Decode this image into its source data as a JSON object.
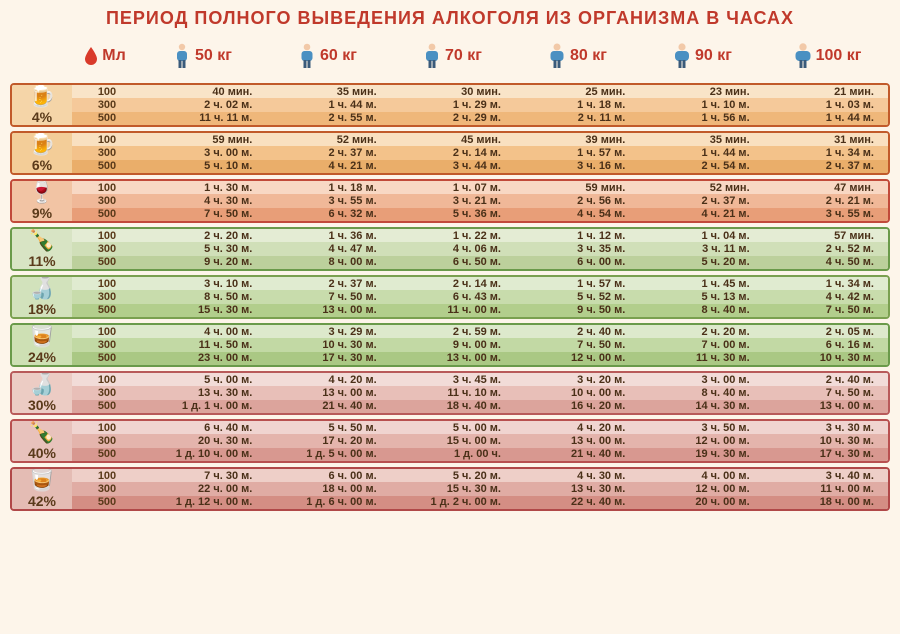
{
  "title": "ПЕРИОД ПОЛНОГО ВЫВЕДЕНИЯ АЛКОГОЛЯ ИЗ ОРГАНИЗМА В ЧАСАХ",
  "ml_label": "Мл",
  "weights": [
    "50 кг",
    "60 кг",
    "70 кг",
    "80 кг",
    "90 кг",
    "100 кг"
  ],
  "groups": [
    {
      "pct": "4%",
      "icon": "🍺",
      "border": "#c15a2a",
      "row_bgs": [
        "#f9e4c8",
        "#f5c99a",
        "#efb77a"
      ],
      "icon_bg": "#f5d5a8",
      "rows": [
        {
          "ml": "100",
          "vals": [
            "40 мин.",
            "35 мин.",
            "30 мин.",
            "25 мин.",
            "23 мин.",
            "21 мин."
          ]
        },
        {
          "ml": "300",
          "vals": [
            "2 ч. 02 м.",
            "1 ч. 44 м.",
            "1 ч. 29 м.",
            "1 ч. 18 м.",
            "1 ч. 10 м.",
            "1 ч. 03 м."
          ]
        },
        {
          "ml": "500",
          "vals": [
            "11 ч. 11 м.",
            "2 ч. 55 м.",
            "2 ч. 29 м.",
            "2 ч. 11 м.",
            "1 ч. 56 м.",
            "1 ч. 44 м."
          ]
        }
      ]
    },
    {
      "pct": "6%",
      "icon": "🍺",
      "border": "#c15a2a",
      "row_bgs": [
        "#f9e0c0",
        "#f3c28a",
        "#eaae6a"
      ],
      "icon_bg": "#f3cd98",
      "rows": [
        {
          "ml": "100",
          "vals": [
            "59 мин.",
            "52 мин.",
            "45 мин.",
            "39 мин.",
            "35 мин.",
            "31 мин."
          ]
        },
        {
          "ml": "300",
          "vals": [
            "3 ч. 00 м.",
            "2 ч. 37 м.",
            "2 ч. 14 м.",
            "1 ч. 57 м.",
            "1 ч. 44 м.",
            "1 ч. 34 м."
          ]
        },
        {
          "ml": "500",
          "vals": [
            "5 ч. 10 м.",
            "4 ч. 21 м.",
            "3 ч. 44 м.",
            "3 ч. 16 м.",
            "2 ч. 54 м.",
            "2 ч. 37 м."
          ]
        }
      ]
    },
    {
      "pct": "9%",
      "icon": "🍷",
      "border": "#c14a3a",
      "row_bgs": [
        "#f8d8c4",
        "#f0b898",
        "#e89e78"
      ],
      "icon_bg": "#f2c4a4",
      "rows": [
        {
          "ml": "100",
          "vals": [
            "1 ч. 30 м.",
            "1 ч. 18 м.",
            "1 ч. 07 м.",
            "59 мин.",
            "52 мин.",
            "47 мин."
          ]
        },
        {
          "ml": "300",
          "vals": [
            "4 ч. 30 м.",
            "3 ч. 55 м.",
            "3 ч. 21 м.",
            "2 ч. 56 м.",
            "2 ч. 37 м.",
            "2 ч. 21 м."
          ]
        },
        {
          "ml": "500",
          "vals": [
            "7 ч. 50 м.",
            "6 ч. 32 м.",
            "5 ч. 36 м.",
            "4 ч. 54 м.",
            "4 ч. 21 м.",
            "3 ч. 55 м."
          ]
        }
      ]
    },
    {
      "pct": "11%",
      "icon": "🍾",
      "border": "#6a9a4a",
      "row_bgs": [
        "#e4ecd4",
        "#d0dfb8",
        "#bcd09c"
      ],
      "icon_bg": "#d8e4c4",
      "rows": [
        {
          "ml": "100",
          "vals": [
            "2 ч. 20 м.",
            "1 ч. 36 м.",
            "1 ч. 22 м.",
            "1 ч. 12 м.",
            "1 ч. 04 м.",
            "57 мин."
          ]
        },
        {
          "ml": "300",
          "vals": [
            "5 ч. 30 м.",
            "4 ч. 47 м.",
            "4 ч. 06 м.",
            "3 ч. 35 м.",
            "3 ч. 11 м.",
            "2 ч. 52 м."
          ]
        },
        {
          "ml": "500",
          "vals": [
            "9 ч. 20 м.",
            "8 ч. 00 м.",
            "6 ч. 50 м.",
            "6 ч. 00 м.",
            "5 ч. 20 м.",
            "4 ч. 50 м."
          ]
        }
      ]
    },
    {
      "pct": "18%",
      "icon": "🍶",
      "border": "#7aa050",
      "row_bgs": [
        "#e0ebd0",
        "#c8dcac",
        "#b2ce8c"
      ],
      "icon_bg": "#d2e2bc",
      "rows": [
        {
          "ml": "100",
          "vals": [
            "3 ч. 10 м.",
            "2 ч. 37 м.",
            "2 ч. 14 м.",
            "1 ч. 57 м.",
            "1 ч. 45 м.",
            "1 ч. 34 м."
          ]
        },
        {
          "ml": "300",
          "vals": [
            "8 ч. 50 м.",
            "7 ч. 50 м.",
            "6 ч. 43 м.",
            "5 ч. 52 м.",
            "5 ч. 13 м.",
            "4 ч. 42 м."
          ]
        },
        {
          "ml": "500",
          "vals": [
            "15 ч. 30 м.",
            "13 ч. 00 м.",
            "11 ч. 00 м.",
            "9 ч. 50 м.",
            "8 ч. 40 м.",
            "7 ч. 50 м."
          ]
        }
      ]
    },
    {
      "pct": "24%",
      "icon": "🥃",
      "border": "#6a9a4a",
      "row_bgs": [
        "#dde9cc",
        "#c2d9a4",
        "#aac884"
      ],
      "icon_bg": "#cee0b4",
      "rows": [
        {
          "ml": "100",
          "vals": [
            "4 ч. 00 м.",
            "3 ч. 29 м.",
            "2 ч. 59 м.",
            "2 ч. 40 м.",
            "2 ч. 20 м.",
            "2 ч. 05 м."
          ]
        },
        {
          "ml": "300",
          "vals": [
            "11 ч. 50 м.",
            "10 ч. 30 м.",
            "9 ч. 00 м.",
            "7 ч. 50 м.",
            "7 ч. 00 м.",
            "6 ч. 16 м."
          ]
        },
        {
          "ml": "500",
          "vals": [
            "23 ч. 00 м.",
            "17 ч. 30 м.",
            "13 ч. 00 м.",
            "12 ч. 00 м.",
            "11 ч. 30 м.",
            "10 ч. 30 м."
          ]
        }
      ]
    },
    {
      "pct": "30%",
      "icon": "🍶",
      "border": "#b85a5a",
      "row_bgs": [
        "#f2dcd8",
        "#e8bfb8",
        "#dca49c"
      ],
      "icon_bg": "#ecccc4",
      "rows": [
        {
          "ml": "100",
          "vals": [
            "5 ч. 00 м.",
            "4 ч. 20 м.",
            "3 ч. 45 м.",
            "3 ч. 20 м.",
            "3 ч. 00 м.",
            "2 ч. 40 м."
          ]
        },
        {
          "ml": "300",
          "vals": [
            "13 ч. 30 м.",
            "13 ч. 00 м.",
            "11 ч. 10 м.",
            "10 ч. 00 м.",
            "8 ч. 40 м.",
            "7 ч. 50 м."
          ]
        },
        {
          "ml": "500",
          "vals": [
            "1 д. 1 ч. 00 м.",
            "21 ч. 40 м.",
            "18 ч. 40 м.",
            "16 ч. 20 м.",
            "14 ч. 30 м.",
            "13 ч. 00 м."
          ]
        }
      ]
    },
    {
      "pct": "40%",
      "icon": "🍾",
      "border": "#b85050",
      "row_bgs": [
        "#f0d4d0",
        "#e4b4ac",
        "#d89890"
      ],
      "icon_bg": "#e8c2bc",
      "rows": [
        {
          "ml": "100",
          "vals": [
            "6 ч. 40 м.",
            "5 ч. 50 м.",
            "5 ч. 00 м.",
            "4 ч. 20 м.",
            "3 ч. 50 м.",
            "3 ч. 30 м."
          ]
        },
        {
          "ml": "300",
          "vals": [
            "20 ч. 30 м.",
            "17 ч. 20 м.",
            "15 ч. 00 м.",
            "13 ч. 00 м.",
            "12 ч. 00 м.",
            "10 ч. 30 м."
          ]
        },
        {
          "ml": "500",
          "vals": [
            "1 д. 10 ч. 00 м.",
            "1 д. 5 ч. 00 м.",
            "1 д. 00 ч.",
            "21 ч. 40 м.",
            "19 ч. 30 м.",
            "17 ч. 30 м."
          ]
        }
      ]
    },
    {
      "pct": "42%",
      "icon": "🥃",
      "border": "#b04848",
      "row_bgs": [
        "#eecfc8",
        "#e0aca4",
        "#d48e84"
      ],
      "icon_bg": "#e4bcb4",
      "rows": [
        {
          "ml": "100",
          "vals": [
            "7 ч. 30 м.",
            "6 ч. 00 м.",
            "5 ч. 20 м.",
            "4 ч. 30 м.",
            "4 ч. 00 м.",
            "3 ч. 40 м."
          ]
        },
        {
          "ml": "300",
          "vals": [
            "22 ч. 00 м.",
            "18 ч. 00 м.",
            "15 ч. 30 м.",
            "13 ч. 30 м.",
            "12 ч. 00 м.",
            "11 ч. 00 м."
          ]
        },
        {
          "ml": "500",
          "vals": [
            "1 д. 12 ч. 00 м.",
            "1 д. 6 ч. 00 м.",
            "1 д. 2 ч. 00 м.",
            "22 ч. 40 м.",
            "20 ч. 00 м.",
            "18 ч. 00 м."
          ]
        }
      ]
    }
  ]
}
